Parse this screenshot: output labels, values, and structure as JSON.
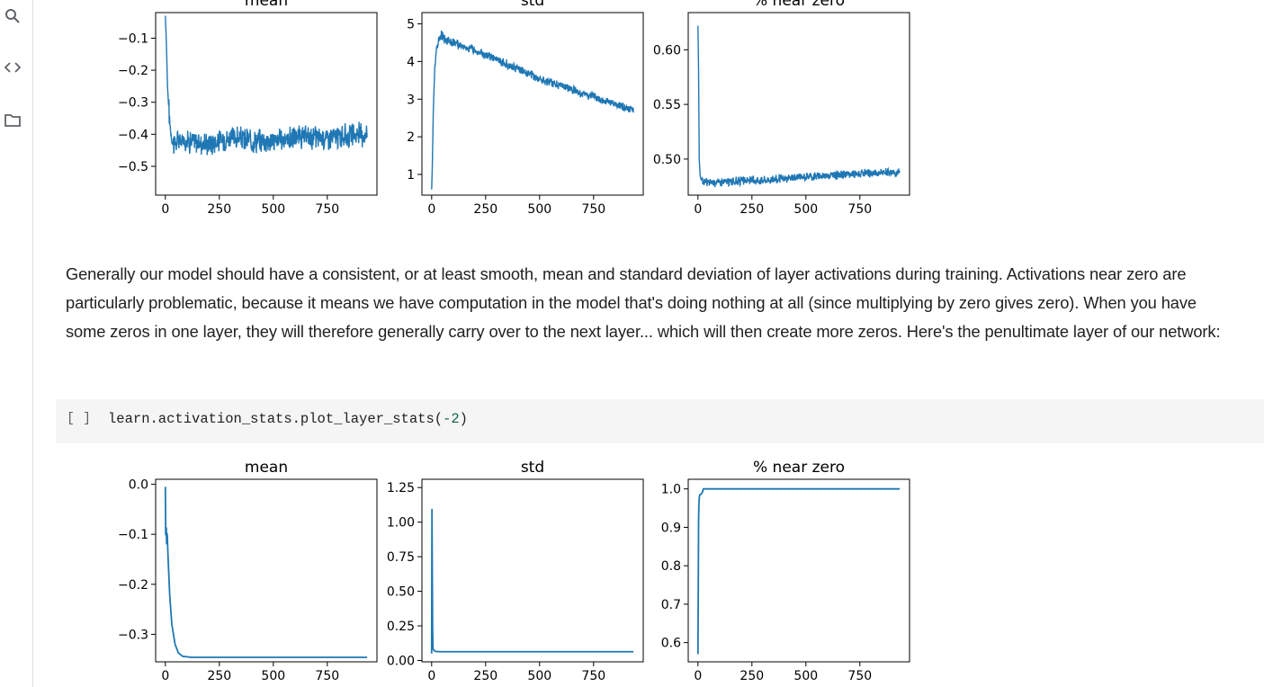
{
  "sidebar": {
    "icons": [
      "search-icon",
      "code-icon",
      "folder-icon"
    ]
  },
  "accent_color": "#1f77b4",
  "prose": {
    "text": "Generally our model should have a consistent, or at least smooth, mean and standard deviation of layer activations during training. Activations near zero are particularly problematic, because it means we have computation in the model that's doing nothing at all (since multiplying by zero gives zero). When you have some zeros in one layer, they will therefore generally carry over to the next layer... which will then create more zeros. Here's the penultimate layer of our network:"
  },
  "code_cell": {
    "run_label": "[ ]",
    "code_prefix": "learn.activation_stats.plot_layer_stats(",
    "code_arg": "-2",
    "code_suffix": ")"
  },
  "chart_data": [
    {
      "type": "line",
      "group": "top",
      "title": "mean",
      "xlim": [
        -45,
        980
      ],
      "ylim": [
        -0.59,
        -0.02
      ],
      "xticks": [
        0,
        250,
        500,
        750
      ],
      "yticks": [
        -0.1,
        -0.2,
        -0.3,
        -0.4,
        -0.5
      ],
      "ytick_labels": [
        "−0.1",
        "−0.2",
        "−0.3",
        "−0.4",
        "−0.5"
      ],
      "series": [
        {
          "x": [
            0,
            5,
            10,
            15,
            20,
            30,
            40,
            60,
            100,
            200,
            300,
            400,
            500,
            600,
            700,
            800,
            900,
            935
          ],
          "values": [
            -0.03,
            -0.12,
            -0.25,
            -0.31,
            -0.36,
            -0.41,
            -0.43,
            -0.42,
            -0.42,
            -0.43,
            -0.41,
            -0.42,
            -0.42,
            -0.41,
            -0.41,
            -0.41,
            -0.4,
            -0.4
          ],
          "noise": 0.028
        }
      ]
    },
    {
      "type": "line",
      "group": "top",
      "title": "std",
      "xlim": [
        -45,
        980
      ],
      "ylim": [
        0.45,
        5.3
      ],
      "xticks": [
        0,
        250,
        500,
        750
      ],
      "yticks": [
        1,
        2,
        3,
        4,
        5
      ],
      "ytick_labels": [
        "1",
        "2",
        "3",
        "4",
        "5"
      ],
      "series": [
        {
          "x": [
            0,
            3,
            8,
            15,
            25,
            35,
            45,
            60,
            100,
            200,
            300,
            400,
            500,
            600,
            700,
            800,
            900,
            935
          ],
          "values": [
            0.6,
            1.2,
            2.8,
            3.9,
            4.4,
            4.6,
            4.7,
            4.6,
            4.5,
            4.3,
            4.05,
            3.8,
            3.55,
            3.35,
            3.15,
            2.95,
            2.75,
            2.7
          ],
          "noise": 0.09
        }
      ]
    },
    {
      "type": "line",
      "group": "top",
      "title": "% near zero",
      "xlim": [
        -45,
        980
      ],
      "ylim": [
        0.467,
        0.634
      ],
      "xticks": [
        0,
        250,
        500,
        750
      ],
      "yticks": [
        0.5,
        0.55,
        0.6
      ],
      "ytick_labels": [
        "0.50",
        "0.55",
        "0.60"
      ],
      "series": [
        {
          "x": [
            0,
            3,
            6,
            10,
            15,
            25,
            50,
            100,
            200,
            300,
            400,
            500,
            600,
            700,
            800,
            900,
            935
          ],
          "values": [
            0.622,
            0.58,
            0.5,
            0.485,
            0.481,
            0.479,
            0.479,
            0.479,
            0.48,
            0.481,
            0.482,
            0.484,
            0.485,
            0.486,
            0.487,
            0.488,
            0.488
          ],
          "noise": 0.003
        }
      ]
    },
    {
      "type": "line",
      "group": "bottom",
      "title": "mean",
      "xlim": [
        -45,
        980
      ],
      "ylim": [
        -0.355,
        0.01
      ],
      "xticks": [
        0,
        250,
        500,
        750
      ],
      "yticks": [
        0.0,
        -0.1,
        -0.2,
        -0.3
      ],
      "ytick_labels": [
        "0.0",
        "−0.1",
        "−0.2",
        "−0.3"
      ],
      "series": [
        {
          "x": [
            0,
            2,
            4,
            6,
            8,
            12,
            20,
            30,
            45,
            60,
            80,
            120,
            200,
            935
          ],
          "values": [
            -0.005,
            -0.13,
            -0.075,
            -0.12,
            -0.09,
            -0.14,
            -0.22,
            -0.28,
            -0.32,
            -0.337,
            -0.344,
            -0.346,
            -0.346,
            -0.346
          ],
          "noise": 0
        }
      ]
    },
    {
      "type": "line",
      "group": "bottom",
      "title": "std",
      "xlim": [
        -45,
        980
      ],
      "ylim": [
        -0.01,
        1.31
      ],
      "xticks": [
        0,
        250,
        500,
        750
      ],
      "yticks": [
        0.0,
        0.25,
        0.5,
        0.75,
        1.0,
        1.25
      ],
      "ytick_labels": [
        "0.00",
        "0.25",
        "0.50",
        "0.75",
        "1.00",
        "1.25"
      ],
      "series": [
        {
          "x": [
            0,
            1,
            3,
            5,
            8,
            12,
            20,
            40,
            100,
            935
          ],
          "values": [
            0.05,
            1.26,
            0.6,
            0.1,
            0.08,
            0.07,
            0.065,
            0.063,
            0.063,
            0.063
          ],
          "noise": 0
        }
      ]
    },
    {
      "type": "line",
      "group": "bottom",
      "title": "% near zero",
      "xlim": [
        -45,
        980
      ],
      "ylim": [
        0.55,
        1.025
      ],
      "xticks": [
        0,
        250,
        500,
        750
      ],
      "yticks": [
        0.6,
        0.7,
        0.8,
        0.9,
        1.0
      ],
      "ytick_labels": [
        "0.6",
        "0.7",
        "0.8",
        "0.9",
        "1.0"
      ],
      "series": [
        {
          "x": [
            0,
            1,
            2,
            3,
            5,
            8,
            12,
            20,
            25,
            30,
            50,
            100,
            935
          ],
          "values": [
            0.57,
            0.87,
            0.6,
            0.92,
            0.97,
            0.985,
            0.985,
            0.99,
            1.0,
            1.0,
            1.0,
            1.0,
            1.0
          ],
          "noise": 0
        }
      ]
    }
  ]
}
